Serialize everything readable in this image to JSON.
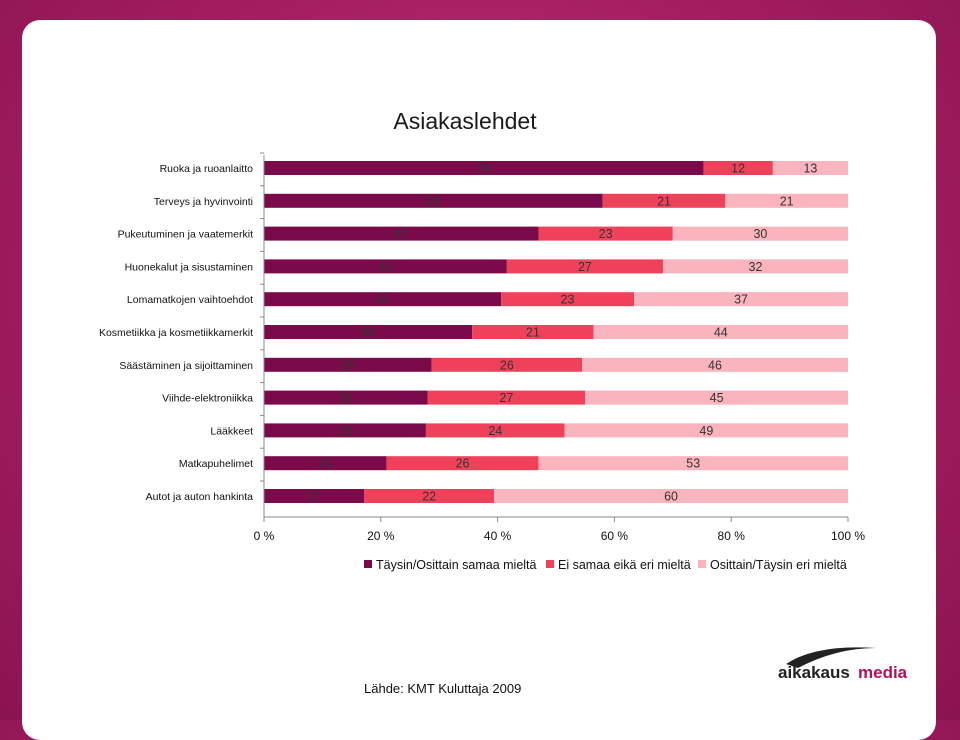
{
  "page": {
    "source": "Lähde: KMT Kuluttaja 2009"
  },
  "logo": {
    "text_aika": "aikakaus",
    "text_media": "media"
  },
  "colors": {
    "agree": "#7b0a4b",
    "neutral": "#f0415a",
    "disagree": "#fab4be"
  },
  "chart_data": {
    "type": "bar",
    "orientation": "horizontal",
    "stacked": "percent",
    "title": "Asiakaslehdet",
    "categories": [
      "Ruoka ja ruoanlaitto",
      "Terveys ja hyvinvointi",
      "Pukeutuminen ja vaatemerkit",
      "Huonekalut ja sisustaminen",
      "Lomamatkojen vaihtoehdot",
      "Kosmetiikka ja kosmetiikkamerkit",
      "Säästäminen ja sijoittaminen",
      "Viihde-elektroniikka",
      "Lääkkeet",
      "Matkapuhelimet",
      "Autot ja auton hankinta"
    ],
    "series": [
      {
        "name": "Täysin/Osittain samaa mieltä",
        "values": [
          76,
          58,
          47,
          42,
          41,
          36,
          29,
          28,
          28,
          21,
          17
        ]
      },
      {
        "name": "Ei samaa eikä eri mieltä",
        "values": [
          12,
          21,
          23,
          27,
          23,
          21,
          26,
          27,
          24,
          26,
          22
        ]
      },
      {
        "name": "Osittain/Täysin eri mieltä",
        "values": [
          13,
          21,
          30,
          32,
          37,
          44,
          46,
          45,
          49,
          53,
          60
        ]
      }
    ],
    "xticks": [
      "0 %",
      "20 %",
      "40 %",
      "60 %",
      "80 %",
      "100 %"
    ],
    "xlim": [
      0,
      100
    ],
    "legend": "bottom",
    "grid": false
  }
}
